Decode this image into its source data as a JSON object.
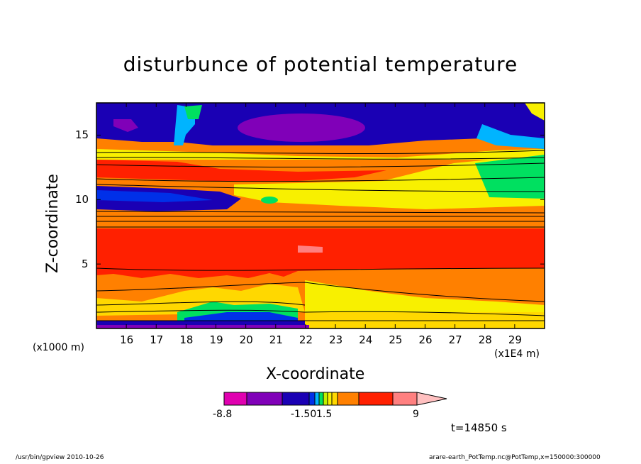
{
  "chart_data": {
    "type": "heatmap",
    "title": "disturbunce of potential temperature",
    "xlabel": "X-coordinate",
    "ylabel": "Z-coordinate",
    "x_unit_left": "(x1000 m)",
    "x_unit_right": "(x1E4 m)",
    "x_ticks": [
      "16",
      "17",
      "18",
      "19",
      "20",
      "21",
      "22",
      "23",
      "24",
      "25",
      "26",
      "27",
      "28",
      "29"
    ],
    "y_ticks": [
      "5",
      "10",
      "15"
    ],
    "xlim": [
      15.0,
      30.0
    ],
    "ylim": [
      0.0,
      17.5
    ],
    "colorbar": {
      "labels": [
        "-8.8",
        "-1.50",
        "1.5",
        "9"
      ],
      "colors": [
        "#e000b0",
        "#8000b8",
        "#1a00b4",
        "#0030e8",
        "#00b4ff",
        "#00e060",
        "#c0f000",
        "#f8f000",
        "#ffd800",
        "#ff8000",
        "#ff2000",
        "#ff8080",
        "#ffc0c0"
      ]
    },
    "bands": [
      {
        "z": [
          0.0,
          0.8
        ],
        "color": "#1a00b4"
      },
      {
        "z": [
          0.8,
          2.0
        ],
        "color": "#ffd800"
      },
      {
        "z": [
          2.0,
          4.5
        ],
        "color": "#ff8000"
      },
      {
        "z": [
          4.5,
          8.0
        ],
        "color": "#ff2000"
      },
      {
        "z": [
          8.0,
          9.5
        ],
        "color": "#ff8000"
      },
      {
        "z": [
          9.5,
          10.8
        ],
        "color": "#1a00b4"
      },
      {
        "z": [
          10.8,
          12.0
        ],
        "color": "#f8f000"
      },
      {
        "z": [
          12.0,
          14.0
        ],
        "color": "#ff8000"
      },
      {
        "z": [
          14.0,
          17.5
        ],
        "color": "#1a00b4"
      }
    ],
    "time_label": "t=14850 s"
  },
  "footer": {
    "left": "/usr/bin/gpview   2010-10-26",
    "right": "arare-earth_PotTemp.nc@PotTemp,x=150000:300000"
  }
}
